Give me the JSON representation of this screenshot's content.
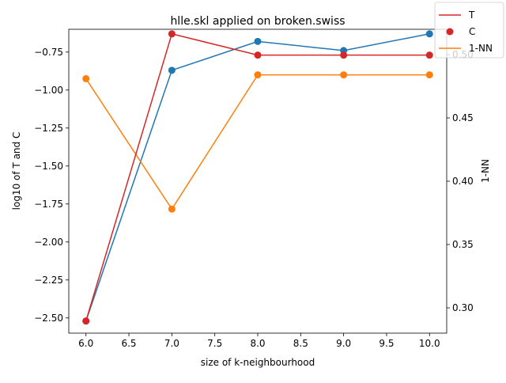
{
  "chart_data": {
    "type": "line",
    "title": "hlle.skl applied on broken.swiss",
    "xlabel": "size of k-neighbourhood",
    "ylabel_left": "log10 of T and C",
    "ylabel_right": "1-NN",
    "x": [
      6.0,
      7.0,
      8.0,
      9.0,
      10.0
    ],
    "xlim": [
      5.8,
      10.2
    ],
    "ylim_left": [
      -2.6,
      -0.6
    ],
    "ylim_right": [
      0.28,
      0.52
    ],
    "xticks": [
      6.0,
      6.5,
      7.0,
      7.5,
      8.0,
      8.5,
      9.0,
      9.5,
      10.0
    ],
    "xtick_labels": [
      "6.0",
      "6.5",
      "7.0",
      "7.5",
      "8.0",
      "8.5",
      "9.0",
      "9.5",
      "10.0"
    ],
    "yticks_left": [
      -0.75,
      -1.0,
      -1.25,
      -1.5,
      -1.75,
      -2.0,
      -2.25,
      -2.5
    ],
    "ytick_labels_left": [
      "−0.75",
      "−1.00",
      "−1.25",
      "−1.50",
      "−1.75",
      "−2.00",
      "−2.25",
      "−2.50"
    ],
    "yticks_right": [
      0.3,
      0.35,
      0.4,
      0.45,
      0.5
    ],
    "ytick_labels_right": [
      "0.30",
      "0.35",
      "0.40",
      "0.45",
      "0.50"
    ],
    "grid": false,
    "legend_position": "top-right",
    "series": [
      {
        "name": "T",
        "axis": "left",
        "style": "line",
        "color": "#d62728",
        "values": [
          -2.52,
          -0.63,
          -0.77,
          -0.77,
          -0.77
        ]
      },
      {
        "name": "C",
        "axis": "left",
        "style": "markers",
        "color": "#d62728",
        "values": [
          -2.52,
          -0.63,
          -0.77,
          -0.77,
          -0.77
        ]
      },
      {
        "name": "",
        "axis": "left",
        "style": "line+markers",
        "color": "#1f77b4",
        "values": [
          -2.52,
          -0.87,
          -0.68,
          -0.74,
          -0.63
        ]
      },
      {
        "name": "1-NN",
        "axis": "right",
        "style": "line+markers",
        "color": "#ff7f0e",
        "values": [
          0.481,
          0.378,
          0.484,
          0.484,
          0.484
        ]
      }
    ],
    "legend": [
      {
        "label": "T",
        "kind": "line",
        "color": "#d62728"
      },
      {
        "label": "C",
        "kind": "marker",
        "color": "#d62728"
      },
      {
        "label": "1-NN",
        "kind": "line",
        "color": "#ff7f0e"
      }
    ]
  }
}
